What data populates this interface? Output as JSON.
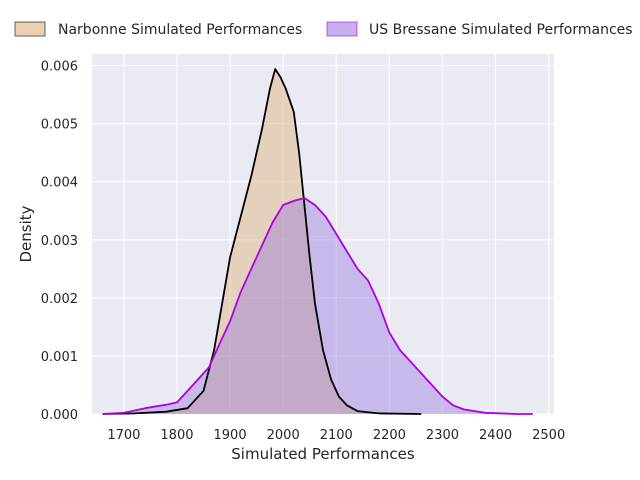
{
  "chart_data": {
    "type": "area",
    "title": "",
    "xlabel": "Simulated Performances",
    "ylabel": "Density",
    "xlim": [
      1640,
      2510
    ],
    "ylim": [
      0,
      0.0062
    ],
    "x_ticks": [
      "1700",
      "1800",
      "1900",
      "2000",
      "2100",
      "2200",
      "2300",
      "2400",
      "2500"
    ],
    "x_tick_values": [
      1700,
      1800,
      1900,
      2000,
      2100,
      2200,
      2300,
      2400,
      2500
    ],
    "y_ticks": [
      "0.000",
      "0.001",
      "0.002",
      "0.003",
      "0.004",
      "0.005",
      "0.006"
    ],
    "y_tick_values": [
      0,
      0.001,
      0.002,
      0.003,
      0.004,
      0.005,
      0.006
    ],
    "grid": true,
    "legend_position": "top",
    "background_color": "#eaeaf2",
    "series": [
      {
        "name": "Narbonne Simulated Performances",
        "line_color": "#000000",
        "fill_color": "#deb887",
        "fill_opacity": 0.5,
        "points": [
          [
            1660,
            0
          ],
          [
            1720,
            1e-05
          ],
          [
            1780,
            4e-05
          ],
          [
            1820,
            0.0001
          ],
          [
            1850,
            0.0004
          ],
          [
            1870,
            0.0011
          ],
          [
            1885,
            0.0019
          ],
          [
            1900,
            0.0027
          ],
          [
            1920,
            0.0034
          ],
          [
            1940,
            0.0041
          ],
          [
            1960,
            0.0049
          ],
          [
            1975,
            0.0056
          ],
          [
            1985,
            0.00594
          ],
          [
            1995,
            0.0058
          ],
          [
            2005,
            0.0056
          ],
          [
            2020,
            0.0052
          ],
          [
            2030,
            0.0045
          ],
          [
            2040,
            0.0036
          ],
          [
            2050,
            0.0027
          ],
          [
            2060,
            0.0019
          ],
          [
            2075,
            0.0011
          ],
          [
            2090,
            0.0006
          ],
          [
            2105,
            0.0003
          ],
          [
            2120,
            0.00015
          ],
          [
            2140,
            5e-05
          ],
          [
            2180,
            1e-05
          ],
          [
            2260,
            0
          ]
        ]
      },
      {
        "name": "US Bressane Simulated Performances",
        "line_color": "#b000e0",
        "fill_color": "#9370db",
        "fill_opacity": 0.4,
        "points": [
          [
            1660,
            0
          ],
          [
            1700,
            2e-05
          ],
          [
            1740,
            0.0001
          ],
          [
            1780,
            0.00016
          ],
          [
            1800,
            0.0002
          ],
          [
            1830,
            0.0005
          ],
          [
            1860,
            0.0008
          ],
          [
            1880,
            0.0012
          ],
          [
            1900,
            0.0016
          ],
          [
            1920,
            0.0021
          ],
          [
            1940,
            0.0025
          ],
          [
            1960,
            0.0029
          ],
          [
            1980,
            0.0033
          ],
          [
            2000,
            0.0036
          ],
          [
            2020,
            0.00367
          ],
          [
            2040,
            0.00372
          ],
          [
            2060,
            0.0036
          ],
          [
            2080,
            0.0034
          ],
          [
            2100,
            0.0031
          ],
          [
            2120,
            0.0028
          ],
          [
            2140,
            0.0025
          ],
          [
            2160,
            0.0023
          ],
          [
            2180,
            0.0019
          ],
          [
            2200,
            0.0014
          ],
          [
            2220,
            0.0011
          ],
          [
            2240,
            0.0009
          ],
          [
            2260,
            0.0007
          ],
          [
            2280,
            0.0005
          ],
          [
            2300,
            0.0003
          ],
          [
            2320,
            0.00015
          ],
          [
            2340,
            8e-05
          ],
          [
            2380,
            2e-05
          ],
          [
            2440,
            0
          ],
          [
            2470,
            0
          ]
        ]
      }
    ]
  }
}
